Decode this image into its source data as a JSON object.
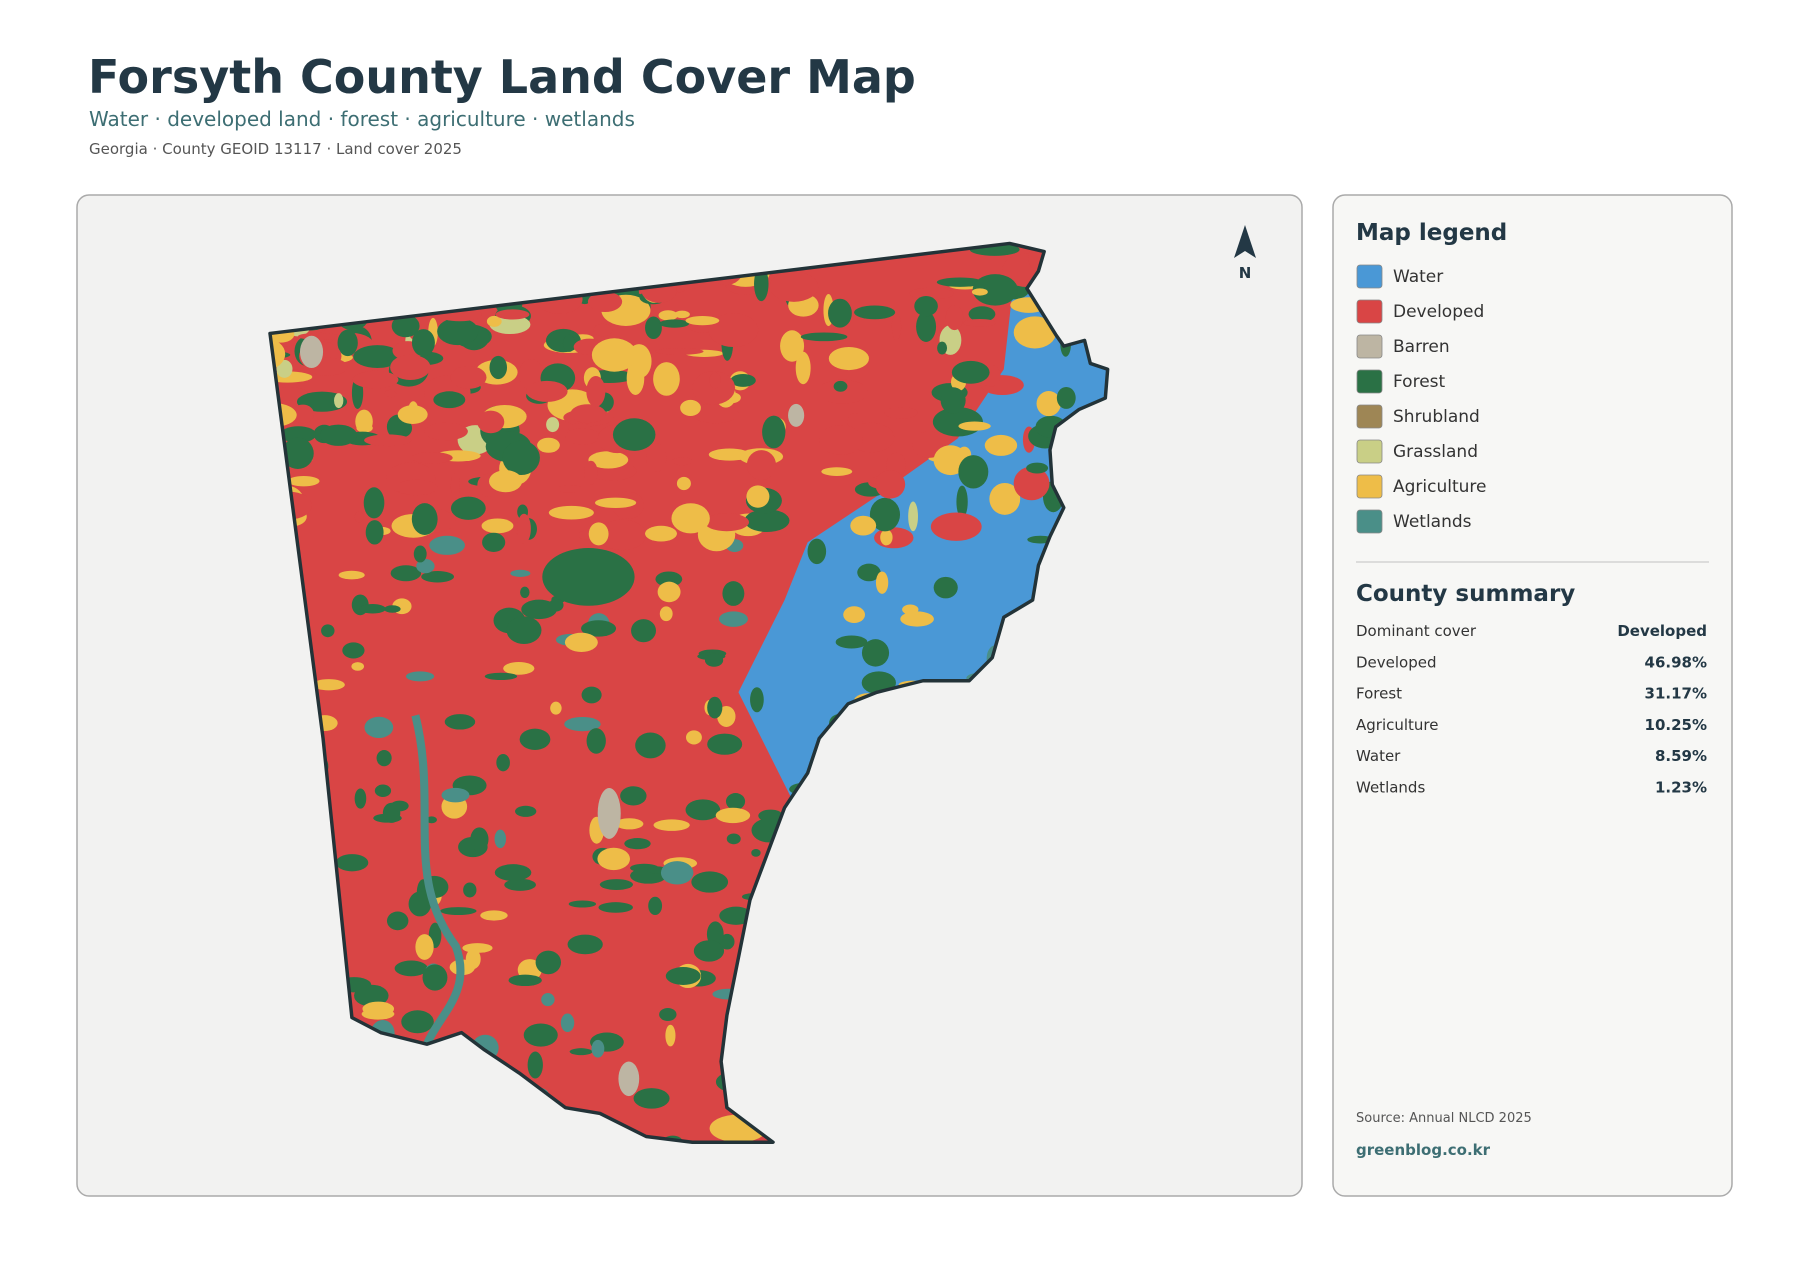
{
  "header": {
    "title": "Forsyth County Land Cover Map",
    "subtitle": "Water · developed land · forest · agriculture · wetlands",
    "meta": "Georgia · County GEOID 13117 · Land cover 2025"
  },
  "map": {
    "north_label": "N"
  },
  "legend": {
    "title": "Map legend",
    "items": [
      {
        "label": "Water",
        "color": "#4a98d6"
      },
      {
        "label": "Developed",
        "color": "#d94545"
      },
      {
        "label": "Barren",
        "color": "#bdb5a3"
      },
      {
        "label": "Forest",
        "color": "#2a7145"
      },
      {
        "label": "Shrubland",
        "color": "#9e8655"
      },
      {
        "label": "Grassland",
        "color": "#c9cf86"
      },
      {
        "label": "Agriculture",
        "color": "#eebd48"
      },
      {
        "label": "Wetlands",
        "color": "#4a8f88"
      }
    ]
  },
  "summary": {
    "title": "County summary",
    "rows": [
      [
        "Dominant cover",
        "Developed"
      ],
      [
        "Developed",
        "46.98%"
      ],
      [
        "Forest",
        "31.17%"
      ],
      [
        "Agriculture",
        "10.25%"
      ],
      [
        "Water",
        "8.59%"
      ],
      [
        "Wetlands",
        "1.23%"
      ]
    ]
  },
  "footer": {
    "source": "Source: Annual NLCD 2025",
    "site": "greenblog.co.kr"
  }
}
